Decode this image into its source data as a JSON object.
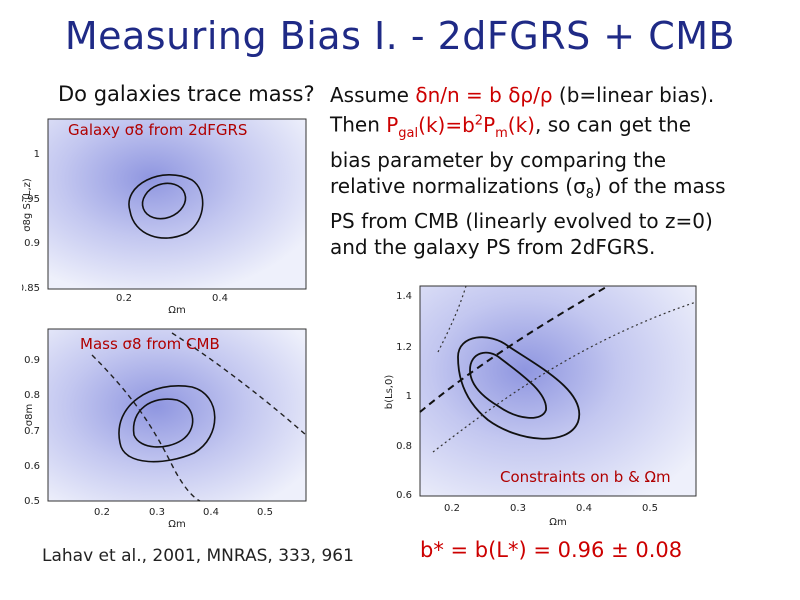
{
  "slide": {
    "title": "Measuring Bias I. - 2dFGRS + CMB",
    "question": "Do galaxies trace mass?",
    "para_line1_a": "Assume ",
    "para_line1_b": "δn/n = b δρ/ρ",
    "para_line1_c": " (b=linear bias).",
    "para_line2_a": "Then ",
    "para_line2_b": "P",
    "para_line2_b_sub": "gal",
    "para_line2_c": "(k)=b",
    "para_line2_c_sup": "2",
    "para_line2_d": "P",
    "para_line2_d_sub": "m",
    "para_line2_e": "(k)",
    "para_line2_f": ", so can get the",
    "para_line3": "bias parameter by comparing the",
    "para_line4": "relative normalizations (σ",
    "para_line4_sub": "8",
    "para_line4_end": ") of the mass",
    "para_line5": "PS from CMB (linearly evolved to z=0)",
    "para_line6": "and the galaxy PS from 2dFGRS.",
    "citation": "Lahav et al., 2001, MNRAS, 333, 961",
    "result": "b* = b(L*) = 0.96 ± 0.08"
  },
  "panel1": {
    "label": "Galaxy σ8 from 2dFGRS",
    "ylabel": "σ8g S (L,z)",
    "xlabel": "Ωm",
    "xticks": [
      "0.2",
      "0.4"
    ],
    "yticks": [
      "1",
      "0.95",
      "0.9",
      "0.85"
    ]
  },
  "panel2": {
    "label": "Mass σ8 from CMB",
    "ylabel": "σ8m",
    "xlabel": "Ωm",
    "xticks": [
      "0.2",
      "0.3",
      "0.4",
      "0.5"
    ],
    "yticks": [
      "0.9",
      "0.8",
      "0.7",
      "0.6",
      "0.5"
    ]
  },
  "panel3": {
    "label": "Constraints on b & Ωm",
    "ylabel": "b(Ls,0)",
    "xlabel": "Ωm",
    "xticks": [
      "0.2",
      "0.3",
      "0.4",
      "0.5"
    ],
    "yticks": [
      "1.4",
      "1.2",
      "1",
      "0.8",
      "0.6"
    ]
  },
  "colors": {
    "title": "#1f2a86",
    "highlight": "#cc0000",
    "panel_fill": "#c9ccf0"
  }
}
